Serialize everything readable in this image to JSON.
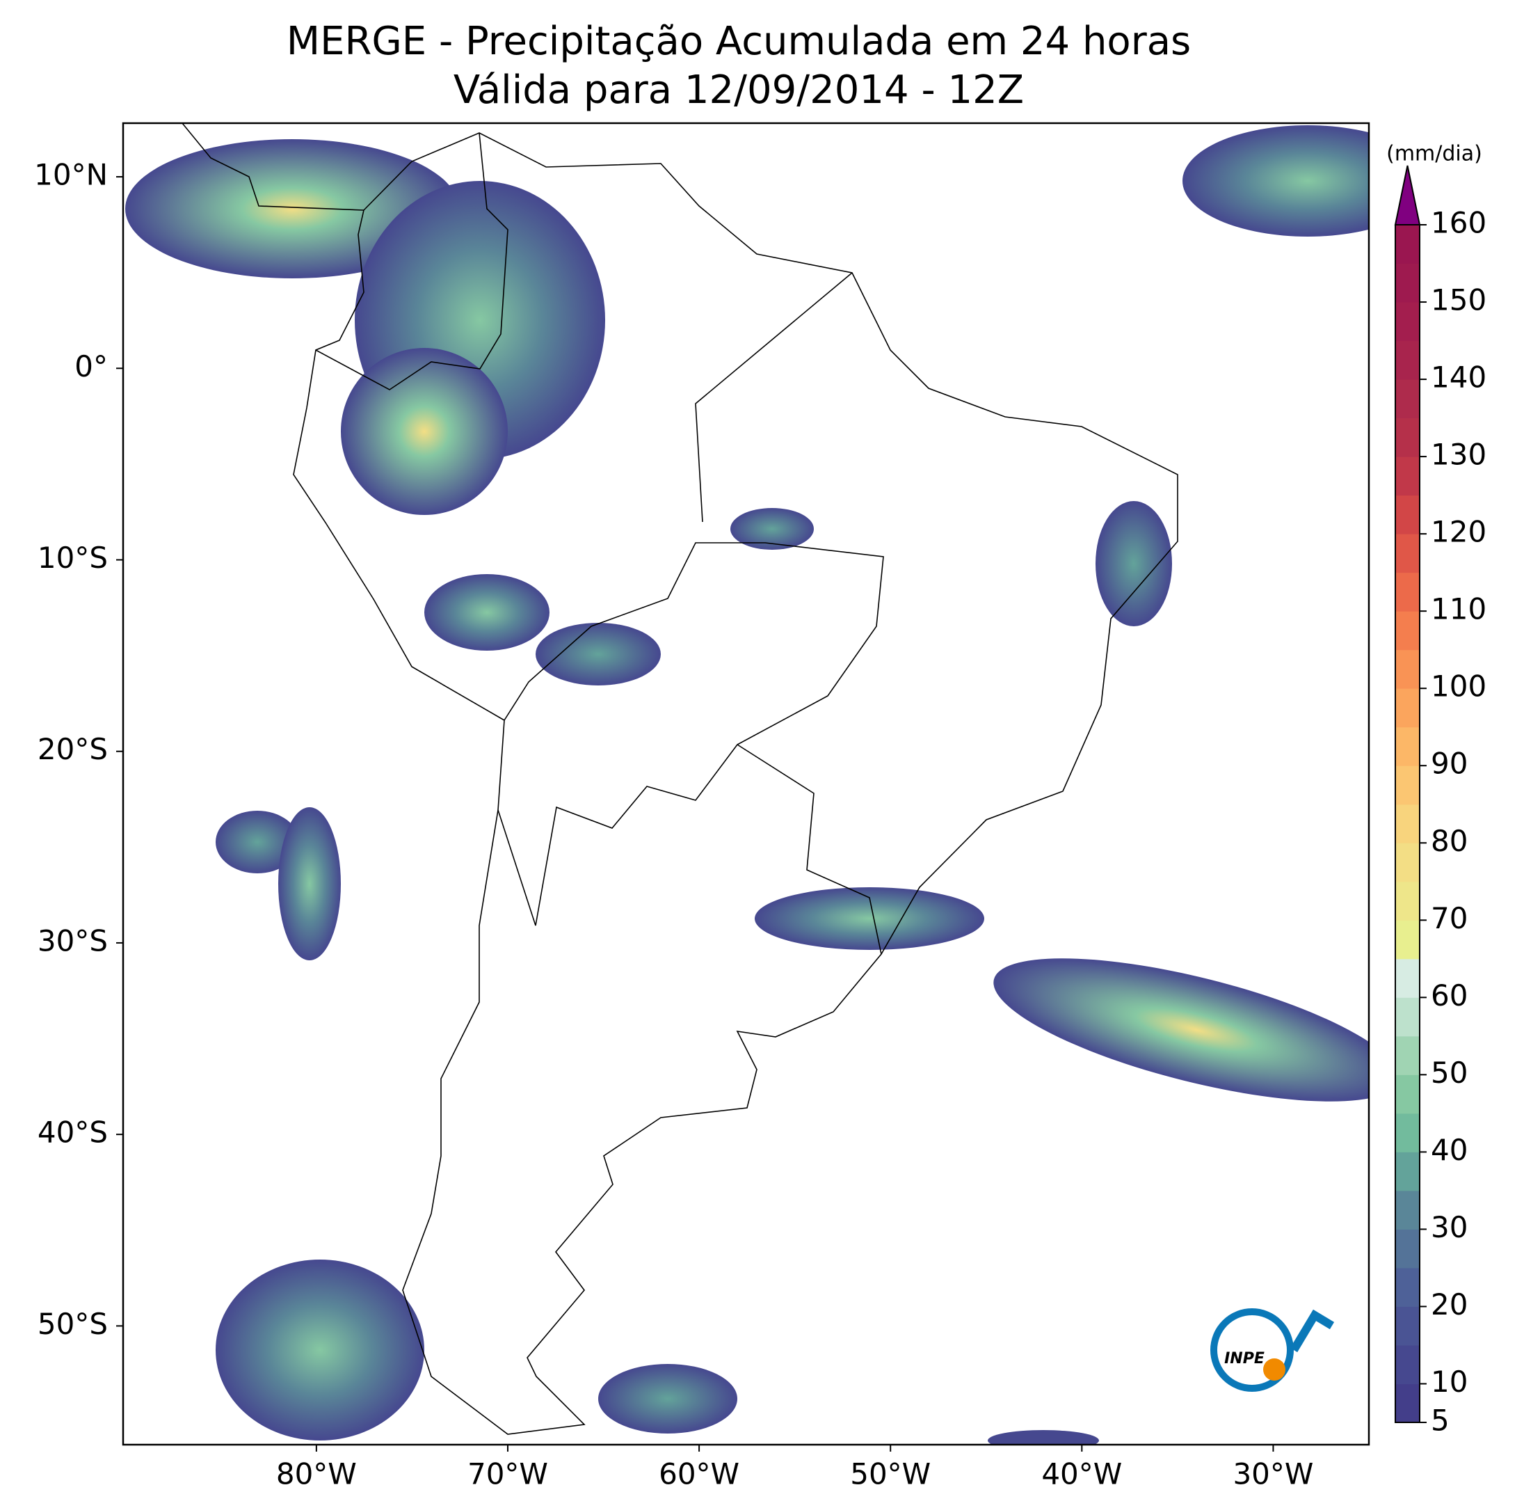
{
  "map": {
    "title": "MERGE - Precipitação Acumulada em 24 horas",
    "subtitle": "Válida para 12/09/2014 - 12Z",
    "xlim": [
      -90.1,
      -25
    ],
    "ylim": [
      -56.2,
      12.8
    ],
    "xticks": [
      {
        "value": -80,
        "label": "80°W"
      },
      {
        "value": -70,
        "label": "70°W"
      },
      {
        "value": -60,
        "label": "60°W"
      },
      {
        "value": -50,
        "label": "50°W"
      },
      {
        "value": -40,
        "label": "40°W"
      },
      {
        "value": -30,
        "label": "30°W"
      }
    ],
    "yticks": [
      {
        "value": 10,
        "label": "10°N"
      },
      {
        "value": 0,
        "label": "0°"
      },
      {
        "value": -10,
        "label": "10°S"
      },
      {
        "value": -20,
        "label": "20°S"
      },
      {
        "value": -30,
        "label": "30°S"
      },
      {
        "value": -40,
        "label": "40°S"
      },
      {
        "value": -50,
        "label": "50°S"
      }
    ],
    "colorbar": {
      "label": "(mm/dia)",
      "lim": [
        5,
        160
      ],
      "ticks": [
        5,
        10,
        20,
        30,
        40,
        50,
        60,
        70,
        80,
        90,
        100,
        110,
        120,
        130,
        140,
        150,
        160
      ],
      "colors": [
        "#433e8a",
        "#46488f",
        "#4a5494",
        "#4e6198",
        "#547398",
        "#5a8698",
        "#63a39a",
        "#72bb9d",
        "#86c8a2",
        "#a0d4b3",
        "#bde1cc",
        "#d7ece3",
        "#e8ef8f",
        "#eee68a",
        "#f3de85",
        "#f8d47d",
        "#fbc672",
        "#fcb767",
        "#fba55d",
        "#f99355",
        "#f47e4e",
        "#ec6a4a",
        "#e05748",
        "#d24647",
        "#c13849",
        "#b5304a",
        "#ae2b4c",
        "#a8244d",
        "#a31e4e",
        "#9e1a4f",
        "#9a1650"
      ],
      "extend_color": "#800080"
    },
    "logo": "INPE"
  }
}
